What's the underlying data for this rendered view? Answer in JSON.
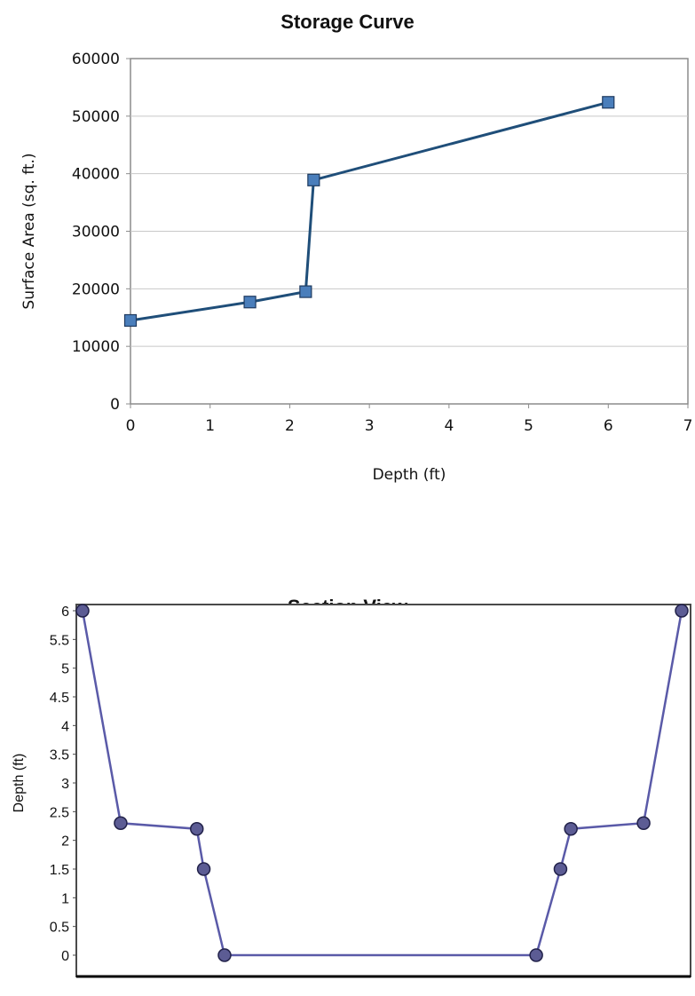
{
  "chart_data": [
    {
      "type": "line",
      "title": "Storage Curve",
      "xlabel": "Depth (ft)",
      "ylabel": "Surface Area (sq. ft.)",
      "xlim": [
        0,
        7
      ],
      "ylim": [
        0,
        60000
      ],
      "x_ticks": [
        "0",
        "1",
        "2",
        "3",
        "4",
        "5",
        "6",
        "7"
      ],
      "y_ticks": [
        "0",
        "10000",
        "20000",
        "30000",
        "40000",
        "50000",
        "60000"
      ],
      "grid": true,
      "marker": "square",
      "color": "#1f4e79",
      "marker_fill": "#4a7ebb",
      "series": [
        {
          "x": [
            0,
            1.5,
            2.2,
            2.3,
            6
          ],
          "y": [
            14500,
            17700,
            19500,
            38900,
            52400
          ]
        }
      ]
    },
    {
      "type": "line",
      "title": "Section View",
      "xlabel": "",
      "ylabel": "Depth (ft)",
      "ylim": [
        0,
        6
      ],
      "y_ticks": [
        "0",
        "0.5",
        "1",
        "1.5",
        "2",
        "2.5",
        "3",
        "3.5",
        "4",
        "4.5",
        "5",
        "5.5",
        "6"
      ],
      "grid": false,
      "marker": "circle",
      "color": "#5a5aa8",
      "marker_fill": "#5c5c94",
      "series": [
        {
          "x": [
            0,
            5.5,
            16.5,
            17.5,
            20.5,
            65.5,
            69,
            70.5,
            81,
            86.5
          ],
          "y": [
            6,
            2.3,
            2.2,
            1.5,
            0,
            0,
            1.5,
            2.2,
            2.3,
            6
          ]
        }
      ]
    }
  ]
}
